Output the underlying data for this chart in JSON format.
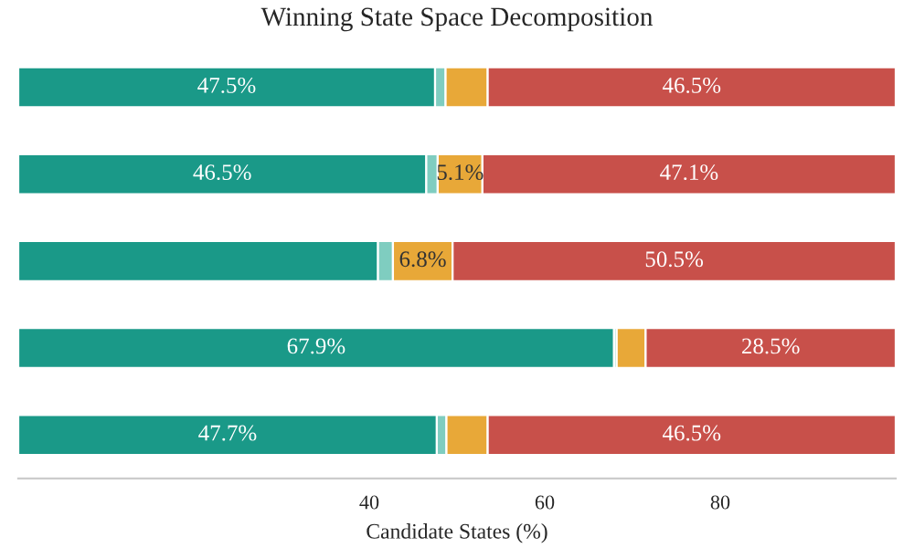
{
  "chart_data": {
    "type": "bar",
    "title": "Winning State Space Decomposition",
    "xlabel": "Candidate States (%)",
    "orientation": "horizontal",
    "stacked": true,
    "categories": [
      null,
      null,
      null,
      null,
      null
    ],
    "series": [
      {
        "color": "#1a9988",
        "values": [
          47.5,
          46.5,
          41.0,
          67.9,
          47.7
        ],
        "value_labels": [
          "47.5%",
          "46.5%",
          null,
          "67.9%",
          "47.7%"
        ]
      },
      {
        "color": "#7fcdc0",
        "values": [
          1.2,
          1.3,
          1.7,
          0.3,
          1.1
        ],
        "value_labels": [
          null,
          null,
          null,
          null,
          null
        ]
      },
      {
        "color": "#e8a838",
        "values": [
          4.8,
          5.1,
          6.8,
          3.3,
          4.7
        ],
        "value_labels": [
          null,
          "5.1%",
          "6.8%",
          null,
          null
        ]
      },
      {
        "color": "#c8504a",
        "values": [
          46.5,
          47.1,
          50.5,
          28.5,
          46.5
        ],
        "value_labels": [
          "46.5%",
          "47.1%",
          "50.5%",
          "28.5%",
          "46.5%"
        ]
      }
    ],
    "xlim": [
      0,
      100
    ],
    "xticks": [
      40,
      60,
      80
    ],
    "grid": false,
    "tick_labels": "x"
  }
}
